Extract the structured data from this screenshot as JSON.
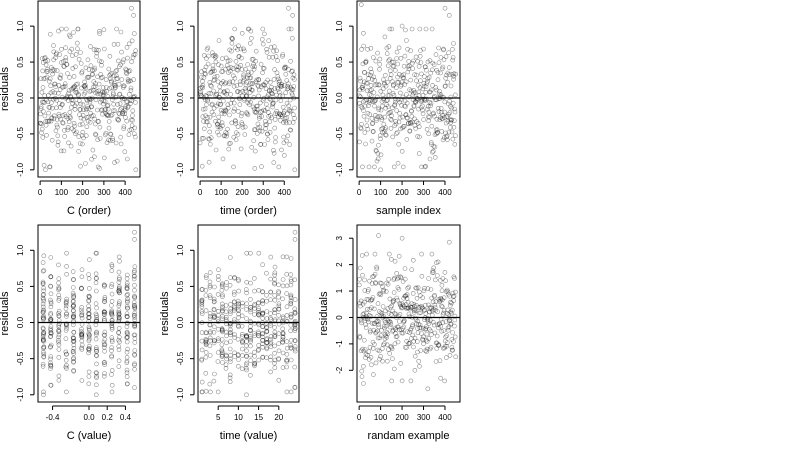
{
  "chart_data": [
    {
      "type": "scatter",
      "xlabel": "C (order)",
      "ylabel": "residuals",
      "xlim": [
        -10,
        470
      ],
      "ylim": [
        -1.1,
        1.35
      ],
      "xticks": [
        0,
        100,
        200,
        300,
        400
      ],
      "xtick_labels": [
        "0",
        "100",
        "200",
        "300",
        "400"
      ],
      "yticks": [
        -1.0,
        -0.5,
        0.0,
        0.5,
        1.0
      ],
      "ytick_labels": [
        "-1.0",
        "-0.5",
        "0.0",
        "0.5",
        "1.0"
      ],
      "reference_line_y": 0,
      "point_count": 450,
      "x_mode": "order",
      "x_categories": [],
      "y_spread": 0.4,
      "seed": 11,
      "points": [
        [
          10,
          0.55
        ],
        [
          120,
          0.7
        ],
        [
          300,
          0.95
        ],
        [
          430,
          1.25
        ],
        [
          440,
          1.15
        ],
        [
          25,
          -1.0
        ],
        [
          190,
          -0.95
        ],
        [
          280,
          -0.98
        ],
        [
          350,
          -0.9
        ],
        [
          410,
          -0.85
        ],
        [
          450,
          -1.0
        ],
        [
          60,
          0.4
        ],
        [
          160,
          0.3
        ],
        [
          220,
          -0.4
        ],
        [
          260,
          0.2
        ],
        [
          330,
          -0.5
        ],
        [
          390,
          0.5
        ],
        [
          80,
          -0.3
        ],
        [
          140,
          -0.2
        ],
        [
          240,
          0.1
        ]
      ]
    },
    {
      "type": "scatter",
      "xlabel": "time (order)",
      "ylabel": "residuals",
      "xlim": [
        -10,
        470
      ],
      "ylim": [
        -1.1,
        1.35
      ],
      "xticks": [
        0,
        100,
        200,
        300,
        400
      ],
      "xtick_labels": [
        "0",
        "100",
        "200",
        "300",
        "400"
      ],
      "yticks": [
        -1.0,
        -0.5,
        0.0,
        0.5,
        1.0
      ],
      "ytick_labels": [
        "-1.0",
        "-0.5",
        "0.0",
        "0.5",
        "1.0"
      ],
      "reference_line_y": 0,
      "point_count": 450,
      "x_mode": "order",
      "x_categories": [],
      "y_spread": 0.4,
      "seed": 23,
      "points": [
        [
          10,
          -0.95
        ],
        [
          30,
          0.55
        ],
        [
          90,
          0.8
        ],
        [
          200,
          0.9
        ],
        [
          300,
          0.75
        ],
        [
          420,
          1.25
        ],
        [
          440,
          1.15
        ],
        [
          260,
          -0.98
        ],
        [
          350,
          -0.9
        ],
        [
          400,
          -0.8
        ],
        [
          450,
          -1.0
        ],
        [
          120,
          0.4
        ],
        [
          180,
          -0.4
        ],
        [
          240,
          0.2
        ],
        [
          320,
          -0.5
        ]
      ]
    },
    {
      "type": "scatter",
      "xlabel": "sample index",
      "ylabel": "residuals",
      "xlim": [
        -10,
        470
      ],
      "ylim": [
        -1.1,
        1.35
      ],
      "xticks": [
        0,
        100,
        200,
        300,
        400
      ],
      "xtick_labels": [
        "0",
        "100",
        "200",
        "300",
        "400"
      ],
      "yticks": [
        -1.0,
        -0.5,
        0.0,
        0.5,
        1.0
      ],
      "ytick_labels": [
        "-1.0",
        "-0.5",
        "0.0",
        "0.5",
        "1.0"
      ],
      "reference_line_y": 0,
      "point_count": 450,
      "x_mode": "order",
      "x_categories": [],
      "y_spread": 0.4,
      "seed": 37,
      "points": [
        [
          10,
          1.3
        ],
        [
          20,
          0.9
        ],
        [
          120,
          0.85
        ],
        [
          200,
          1.0
        ],
        [
          220,
          0.8
        ],
        [
          400,
          1.25
        ],
        [
          420,
          1.15
        ],
        [
          100,
          -1.0
        ],
        [
          310,
          -0.95
        ],
        [
          330,
          -0.85
        ],
        [
          360,
          -0.5
        ],
        [
          60,
          -0.6
        ],
        [
          160,
          0.5
        ],
        [
          280,
          -0.4
        ],
        [
          440,
          0.3
        ]
      ]
    },
    {
      "type": "scatter",
      "xlabel": "C (value)",
      "ylabel": "residuals",
      "xlim": [
        -0.56,
        0.56
      ],
      "ylim": [
        -1.1,
        1.35
      ],
      "xticks": [
        -0.4,
        0.0,
        0.2,
        0.4
      ],
      "xtick_labels": [
        "-0.4",
        "0.0",
        "0.2",
        "0.4"
      ],
      "yticks": [
        -1.0,
        -0.5,
        0.0,
        0.5,
        1.0
      ],
      "ytick_labels": [
        "-1.0",
        "-0.5",
        "0.0",
        "0.5",
        "1.0"
      ],
      "reference_line_y": 0,
      "point_count": 450,
      "x_mode": "discrete",
      "x_categories": [
        -0.5,
        -0.42,
        -0.33,
        -0.25,
        -0.17,
        -0.08,
        0.0,
        0.08,
        0.17,
        0.25,
        0.33,
        0.42,
        0.5
      ],
      "y_spread": 0.4,
      "seed": 53,
      "points": [
        [
          -0.5,
          -1.0
        ],
        [
          0.5,
          1.25
        ],
        [
          0.5,
          1.15
        ],
        [
          0.08,
          -1.0
        ],
        [
          0.5,
          -0.9
        ],
        [
          -0.42,
          0.9
        ],
        [
          -0.33,
          -0.8
        ],
        [
          0.25,
          0.8
        ],
        [
          0.42,
          -0.85
        ]
      ]
    },
    {
      "type": "scatter",
      "xlabel": "time (value)",
      "ylabel": "residuals",
      "xlim": [
        0,
        25
      ],
      "ylim": [
        -1.1,
        1.35
      ],
      "xticks": [
        5,
        10,
        15,
        20
      ],
      "xtick_labels": [
        "5",
        "10",
        "15",
        "20"
      ],
      "yticks": [
        -1.0,
        -0.5,
        0.0,
        0.5,
        1.0
      ],
      "ytick_labels": [
        "-1.0",
        "-0.5",
        "0.0",
        "0.5",
        "1.0"
      ],
      "reference_line_y": 0,
      "point_count": 450,
      "x_mode": "discrete",
      "x_categories": [
        1,
        2,
        3,
        4,
        5,
        6,
        7,
        8,
        9,
        10,
        11,
        12,
        13,
        14,
        15,
        16,
        17,
        18,
        19,
        20,
        21,
        22,
        23,
        24
      ],
      "y_spread": 0.4,
      "seed": 71,
      "points": [
        [
          24,
          1.25
        ],
        [
          24,
          1.15
        ],
        [
          2,
          -0.95
        ],
        [
          12,
          -1.0
        ],
        [
          24,
          -0.9
        ],
        [
          8,
          0.9
        ],
        [
          16,
          0.8
        ],
        [
          20,
          -0.8
        ]
      ]
    },
    {
      "type": "scatter",
      "xlabel": "randam example",
      "ylabel": "residuals",
      "xlim": [
        -10,
        470
      ],
      "ylim": [
        -3.2,
        3.5
      ],
      "xticks": [
        0,
        100,
        200,
        300,
        400
      ],
      "xtick_labels": [
        "0",
        "100",
        "200",
        "300",
        "400"
      ],
      "yticks": [
        -2,
        -1,
        0,
        1,
        2,
        3
      ],
      "ytick_labels": [
        "-2",
        "-1",
        "0",
        "1",
        "2",
        "3"
      ],
      "reference_line_y": 0,
      "point_count": 450,
      "x_mode": "order",
      "x_categories": [],
      "y_spread": 1.0,
      "seed": 89,
      "points": [
        [
          90,
          3.1
        ],
        [
          200,
          3.0
        ],
        [
          420,
          2.85
        ],
        [
          20,
          -2.5
        ],
        [
          320,
          -2.7
        ],
        [
          380,
          -2.3
        ],
        [
          150,
          2.2
        ],
        [
          260,
          -2.0
        ]
      ]
    }
  ]
}
